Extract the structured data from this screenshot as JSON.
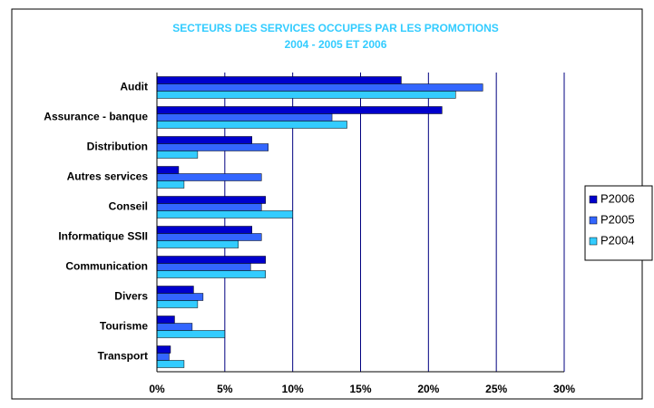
{
  "chart_data": {
    "type": "bar",
    "orientation": "horizontal",
    "title": "SECTEURS DES SERVICES OCCUPES PAR LES PROMOTIONS",
    "subtitle": "2004 - 2005 ET 2006",
    "categories": [
      "Audit",
      "Assurance - banque",
      "Distribution",
      "Autres services",
      "Conseil",
      "Informatique SSII",
      "Communication",
      "Divers",
      "Tourisme",
      "Transport"
    ],
    "series": [
      {
        "name": "P2006",
        "color": "#0000cc",
        "values": [
          18,
          21,
          7,
          1.6,
          8,
          7,
          8,
          2.7,
          1.3,
          1
        ]
      },
      {
        "name": "P2005",
        "color": "#3366ff",
        "values": [
          24,
          12.9,
          8.2,
          7.7,
          7.7,
          7.7,
          6.9,
          3.4,
          2.6,
          0.9
        ]
      },
      {
        "name": "P2004",
        "color": "#33ccff",
        "values": [
          22,
          14,
          3,
          2,
          10,
          6,
          8,
          3,
          5,
          2
        ]
      }
    ],
    "xlim": [
      0,
      30
    ],
    "xticks": [
      {
        "value": 0,
        "label": "0%"
      },
      {
        "value": 5,
        "label": "5%"
      },
      {
        "value": 10,
        "label": "10%"
      },
      {
        "value": 15,
        "label": "15%"
      },
      {
        "value": 20,
        "label": "20%"
      },
      {
        "value": 25,
        "label": "25%"
      },
      {
        "value": 30,
        "label": "30%"
      }
    ],
    "grid": true,
    "grid_color": "#000080",
    "legend": "right"
  }
}
